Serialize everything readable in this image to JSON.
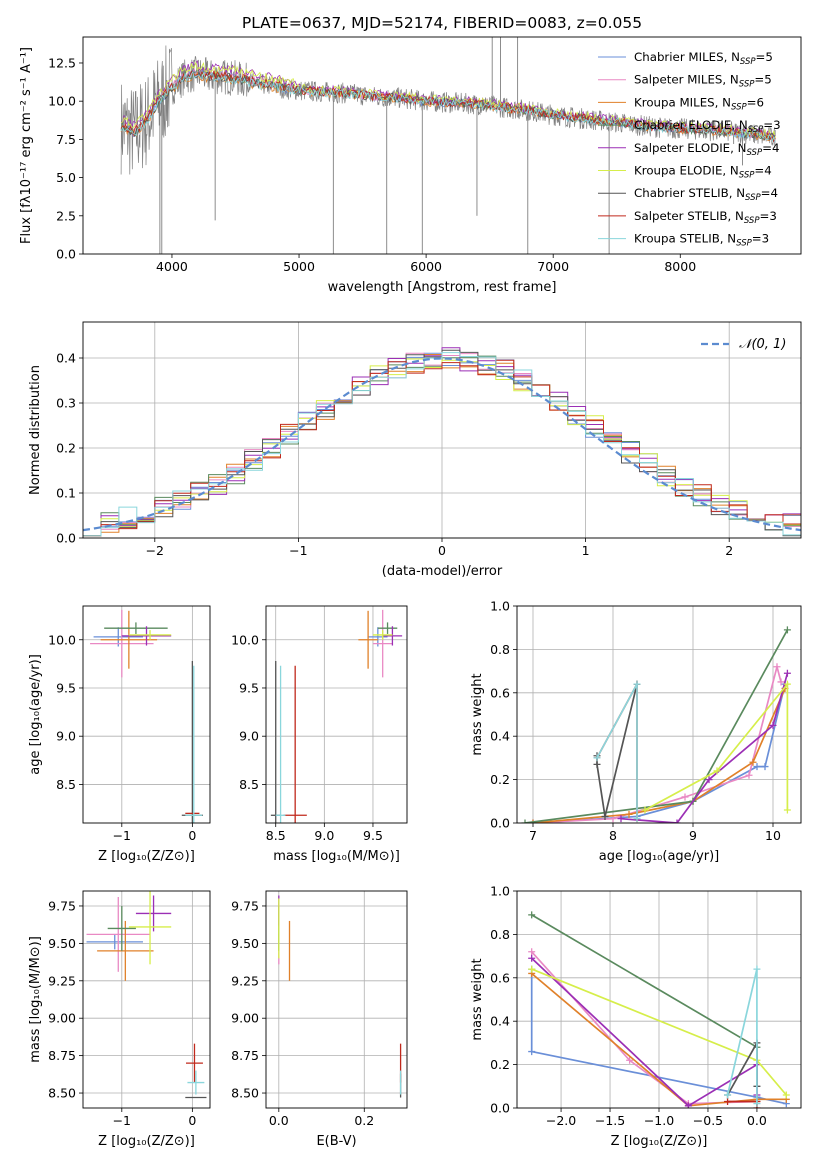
{
  "figure_title": "PLATE=0637, MJD=52174, FIBERID=0083, z=0.055",
  "series_colors": [
    "#6a8fd8",
    "#e989c4",
    "#e0812a",
    "#5a8a5e",
    "#9b2fb5",
    "#d6ee4a",
    "#555555",
    "#c0291c",
    "#8ad6dc"
  ],
  "chart_data": [
    {
      "id": "spectrum",
      "type": "line",
      "title": "PLATE=0637, MJD=52174, FIBERID=0083, z=0.055",
      "xlabel": "wavelength [Angstrom, rest frame]",
      "ylabel": "Flux [fλ10⁻¹⁷ erg cm⁻² s⁻¹ A⁻¹]",
      "xlim": [
        3300,
        8950
      ],
      "ylim": [
        0,
        14.2
      ],
      "x_ticks": [
        "4000",
        "5000",
        "6000",
        "7000",
        "8000"
      ],
      "y_ticks": [
        "0.0",
        "2.5",
        "5.0",
        "7.5",
        "10.0",
        "12.5"
      ],
      "grid": false,
      "legend_position": "top-right",
      "legend": [
        {
          "base": "Chabrier MILES, N",
          "sub": "SSP",
          "tail": "=5"
        },
        {
          "base": "Salpeter MILES, N",
          "sub": "SSP",
          "tail": "=5"
        },
        {
          "base": "Kroupa MILES, N",
          "sub": "SSP",
          "tail": "=6"
        },
        {
          "base": "Chabrier ELODIE, N",
          "sub": "SSP",
          "tail": "=3"
        },
        {
          "base": "Salpeter ELODIE, N",
          "sub": "SSP",
          "tail": "=4"
        },
        {
          "base": "Kroupa ELODIE, N",
          "sub": "SSP",
          "tail": "=4"
        },
        {
          "base": "Chabrier STELIB, N",
          "sub": "SSP",
          "tail": "=4"
        },
        {
          "base": "Salpeter STELIB, N",
          "sub": "SSP",
          "tail": "=3"
        },
        {
          "base": "Kroupa STELIB, N",
          "sub": "SSP",
          "tail": "=3"
        }
      ],
      "data_color": "#808080",
      "model_x": [
        3600,
        3700,
        3800,
        3900,
        4000,
        4100,
        4200,
        4300,
        4400,
        4500,
        4600,
        4700,
        4800,
        4900,
        5000,
        5200,
        5400,
        5600,
        5800,
        6000,
        6200,
        6400,
        6600,
        6800,
        7000,
        7200,
        7400,
        7600,
        7800,
        8000,
        8200,
        8400,
        8600,
        8750
      ],
      "model_y": [
        8.4,
        7.9,
        8.7,
        10.0,
        10.9,
        11.6,
        11.8,
        11.6,
        11.6,
        11.5,
        11.3,
        11.1,
        11.0,
        10.8,
        10.7,
        10.6,
        10.5,
        10.3,
        10.2,
        10.0,
        9.9,
        9.8,
        9.6,
        9.4,
        9.1,
        8.9,
        8.7,
        8.5,
        8.3,
        8.2,
        8.1,
        8.0,
        7.8,
        7.6
      ],
      "model_offsets": [
        0.0,
        0.15,
        -0.1,
        0.05,
        0.55,
        0.5,
        0.0,
        0.1,
        -0.05
      ],
      "dips": [
        {
          "x": 3905,
          "y": 0.0
        },
        {
          "x": 3920,
          "y": 0.0
        },
        {
          "x": 4340,
          "y": 2.2
        },
        {
          "x": 5270,
          "y": 0.0
        },
        {
          "x": 5690,
          "y": 0.0
        },
        {
          "x": 5970,
          "y": 0.0
        },
        {
          "x": 6400,
          "y": 2.5
        },
        {
          "x": 6800,
          "y": 0.0
        },
        {
          "x": 7440,
          "y": 0.0
        },
        {
          "x": 8420,
          "y": 7.2
        },
        {
          "x": 8490,
          "y": 5.8
        }
      ],
      "spikes": [
        {
          "x": 6520,
          "y": 14.2
        },
        {
          "x": 6585,
          "y": 14.2
        },
        {
          "x": 6720,
          "y": 14.2
        }
      ]
    },
    {
      "id": "residuals",
      "type": "step",
      "xlabel": "(data-model)/error",
      "ylabel": "Normed distribution",
      "xlim": [
        -2.5,
        2.5
      ],
      "ylim": [
        0,
        0.48
      ],
      "x_ticks": [
        "−2",
        "−1",
        "0",
        "1",
        "2"
      ],
      "y_ticks": [
        "0.0",
        "0.1",
        "0.2",
        "0.3",
        "0.4"
      ],
      "grid": true,
      "legend_position": "top-right",
      "gaussian_label": "𝒩(0, 1)",
      "gaussian_color": "#5b8bd0",
      "bin_edges": [
        -2.5,
        2.5
      ],
      "bin_count": 40,
      "hist_base": [
        0.03,
        0.037,
        0.045,
        0.055,
        0.068,
        0.083,
        0.1,
        0.12,
        0.145,
        0.172,
        0.2,
        0.228,
        0.258,
        0.286,
        0.312,
        0.338,
        0.36,
        0.378,
        0.39,
        0.398,
        0.4,
        0.396,
        0.386,
        0.372,
        0.352,
        0.33,
        0.304,
        0.276,
        0.248,
        0.218,
        0.19,
        0.163,
        0.138,
        0.115,
        0.094,
        0.076,
        0.061,
        0.048,
        0.038,
        0.03
      ]
    },
    {
      "id": "age-vs-metallicity",
      "type": "errorbar",
      "xlabel": "Z [log₁₀(Z/Z⊙)]",
      "ylabel": "age  [log₁₀(age/yr)]",
      "xlim": [
        -1.55,
        0.25
      ],
      "ylim": [
        8.1,
        10.35
      ],
      "x_ticks": [
        "−1",
        "0"
      ],
      "y_ticks": [
        "8.5",
        "9.0",
        "9.5",
        "10.0"
      ],
      "grid": true,
      "points": [
        {
          "s": 0,
          "x": -1.05,
          "y": 10.03,
          "xe": 0.35,
          "ye": 0.1
        },
        {
          "s": 1,
          "x": -1.0,
          "y": 9.96,
          "xe": 0.45,
          "ye": 0.35
        },
        {
          "s": 2,
          "x": -0.9,
          "y": 10.0,
          "xe": 0.4,
          "ye": 0.3
        },
        {
          "s": 3,
          "x": -0.8,
          "y": 10.12,
          "xe": 0.45,
          "ye": 0.06
        },
        {
          "s": 4,
          "x": -0.65,
          "y": 10.04,
          "xe": 0.35,
          "ye": 0.1
        },
        {
          "s": 5,
          "x": -0.6,
          "y": 10.05,
          "xe": 0.3,
          "ye": 0.05
        },
        {
          "s": 6,
          "x": 0.0,
          "y": 8.18,
          "xe": 0.15,
          "ye": 1.6
        },
        {
          "s": 7,
          "x": 0.0,
          "y": 8.2,
          "xe": 0.1,
          "ye": 0.0
        },
        {
          "s": 8,
          "x": 0.02,
          "y": 8.18,
          "xe": 0.12,
          "ye": 1.55
        }
      ]
    },
    {
      "id": "age-vs-mass",
      "type": "errorbar",
      "xlabel": "mass [log₁₀(M/M⊙)]",
      "ylabel": "",
      "xlim": [
        8.4,
        9.85
      ],
      "ylim": [
        8.1,
        10.35
      ],
      "x_ticks": [
        "8.5",
        "9.0",
        "9.5"
      ],
      "y_ticks": [
        "8.5",
        "9.0",
        "9.5",
        "10.0"
      ],
      "grid": true,
      "points": [
        {
          "s": 0,
          "x": 9.55,
          "y": 10.03,
          "xe": 0.1,
          "ye": 0.1
        },
        {
          "s": 1,
          "x": 9.6,
          "y": 9.96,
          "xe": 0.1,
          "ye": 0.35
        },
        {
          "s": 2,
          "x": 9.45,
          "y": 10.0,
          "xe": 0.1,
          "ye": 0.3
        },
        {
          "s": 3,
          "x": 9.65,
          "y": 10.12,
          "xe": 0.1,
          "ye": 0.06
        },
        {
          "s": 4,
          "x": 9.7,
          "y": 10.04,
          "xe": 0.1,
          "ye": 0.1
        },
        {
          "s": 5,
          "x": 9.6,
          "y": 10.05,
          "xe": 0.1,
          "ye": 0.05
        },
        {
          "s": 6,
          "x": 8.5,
          "y": 8.18,
          "xe": 0.05,
          "ye": 1.6
        },
        {
          "s": 7,
          "x": 8.7,
          "y": 8.18,
          "xe": 0.12,
          "ye": 1.55
        },
        {
          "s": 8,
          "x": 8.55,
          "y": 8.18,
          "xe": 0.05,
          "ye": 1.55
        }
      ]
    },
    {
      "id": "massweight-vs-age",
      "type": "line",
      "xlabel": "age  [log₁₀(age/yr)]",
      "ylabel": "mass weight",
      "xlim": [
        6.8,
        10.35
      ],
      "ylim": [
        0,
        1.0
      ],
      "x_ticks": [
        "7",
        "8",
        "9",
        "10"
      ],
      "y_ticks": [
        "0.0",
        "0.2",
        "0.4",
        "0.6",
        "0.8",
        "1.0"
      ],
      "grid": true,
      "series": [
        {
          "s": 0,
          "x": [
            7.0,
            8.3,
            9.0,
            9.8,
            9.9,
            10.15
          ],
          "y": [
            0.0,
            0.03,
            0.1,
            0.26,
            0.26,
            0.64
          ]
        },
        {
          "s": 1,
          "x": [
            7.0,
            8.0,
            8.9,
            9.7,
            10.05,
            10.1
          ],
          "y": [
            0.0,
            0.02,
            0.12,
            0.22,
            0.72,
            0.65
          ]
        },
        {
          "s": 2,
          "x": [
            7.0,
            8.2,
            9.0,
            9.75,
            10.15
          ],
          "y": [
            0.0,
            0.04,
            0.1,
            0.28,
            0.62
          ]
        },
        {
          "s": 3,
          "x": [
            6.9,
            9.0,
            10.18
          ],
          "y": [
            0.0,
            0.1,
            0.89
          ]
        },
        {
          "s": 4,
          "x": [
            8.1,
            8.8,
            9.2,
            10.0,
            10.18
          ],
          "y": [
            0.02,
            0.0,
            0.2,
            0.45,
            0.69
          ]
        },
        {
          "s": 5,
          "x": [
            8.4,
            9.3,
            10.18,
            10.18
          ],
          "y": [
            0.06,
            0.24,
            0.64,
            0.06
          ]
        },
        {
          "s": 6,
          "x": [
            7.8,
            7.8,
            7.9,
            8.3
          ],
          "y": [
            0.31,
            0.27,
            0.03,
            0.64
          ]
        },
        {
          "s": 7,
          "x": [
            7.8,
            8.3,
            8.3
          ],
          "y": [
            0.3,
            0.64,
            0.02
          ]
        },
        {
          "s": 8,
          "x": [
            7.8,
            8.3,
            8.3
          ],
          "y": [
            0.3,
            0.64,
            0.02
          ]
        }
      ]
    },
    {
      "id": "mass-vs-metallicity",
      "type": "errorbar",
      "xlabel": "Z [log₁₀(Z/Z⊙)]",
      "ylabel": "mass [log₁₀(M/M⊙)]",
      "xlim": [
        -1.55,
        0.25
      ],
      "ylim": [
        8.4,
        9.85
      ],
      "x_ticks": [
        "−1",
        "0"
      ],
      "y_ticks": [
        "8.50",
        "8.75",
        "9.00",
        "9.25",
        "9.50",
        "9.75"
      ],
      "grid": true,
      "points": [
        {
          "s": 0,
          "x": -1.1,
          "y": 9.51,
          "xe": 0.4,
          "ye": 0.05
        },
        {
          "s": 1,
          "x": -1.05,
          "y": 9.56,
          "xe": 0.45,
          "ye": 0.25
        },
        {
          "s": 2,
          "x": -0.95,
          "y": 9.45,
          "xe": 0.4,
          "ye": 0.2
        },
        {
          "s": 3,
          "x": -1.0,
          "y": 9.6,
          "xe": 0.2,
          "ye": 0.15
        },
        {
          "s": 4,
          "x": -0.55,
          "y": 9.7,
          "xe": 0.25,
          "ye": 0.12
        },
        {
          "s": 5,
          "x": -0.6,
          "y": 9.61,
          "xe": 0.3,
          "ye": 0.25
        },
        {
          "s": 6,
          "x": 0.05,
          "y": 8.47,
          "xe": 0.15,
          "ye": 0.0
        },
        {
          "s": 7,
          "x": 0.03,
          "y": 8.7,
          "xe": 0.12,
          "ye": 0.13
        },
        {
          "s": 8,
          "x": 0.05,
          "y": 8.57,
          "xe": 0.12,
          "ye": 0.08
        }
      ]
    },
    {
      "id": "mass-vs-ebv",
      "type": "errorbar",
      "xlabel": "E(B-V)",
      "ylabel": "",
      "xlim": [
        -0.03,
        0.3
      ],
      "ylim": [
        8.4,
        9.85
      ],
      "x_ticks": [
        "0.0",
        "0.2"
      ],
      "y_ticks": [
        "8.50",
        "8.75",
        "9.00",
        "9.25",
        "9.50",
        "9.75"
      ],
      "grid": true,
      "points": [
        {
          "s": 0,
          "x": 0.0,
          "y": 9.51,
          "xe": 0.0,
          "ye": 0.05
        },
        {
          "s": 1,
          "x": 0.0,
          "y": 9.56,
          "xe": 0.0,
          "ye": 0.2
        },
        {
          "s": 2,
          "x": 0.025,
          "y": 9.45,
          "xe": 0.0,
          "ye": 0.2
        },
        {
          "s": 3,
          "x": 0.0,
          "y": 9.6,
          "xe": 0.0,
          "ye": 0.15
        },
        {
          "s": 4,
          "x": 0.0,
          "y": 9.72,
          "xe": 0.0,
          "ye": 0.1
        },
        {
          "s": 5,
          "x": 0.0,
          "y": 9.6,
          "xe": 0.0,
          "ye": 0.2
        },
        {
          "s": 6,
          "x": 0.285,
          "y": 8.55,
          "xe": 0.0,
          "ye": 0.08
        },
        {
          "s": 7,
          "x": 0.285,
          "y": 8.7,
          "xe": 0.0,
          "ye": 0.13
        },
        {
          "s": 8,
          "x": 0.285,
          "y": 8.57,
          "xe": 0.0,
          "ye": 0.08
        }
      ]
    },
    {
      "id": "massweight-vs-metallicity",
      "type": "line",
      "xlabel": "Z [log₁₀(Z/Z⊙)]",
      "ylabel": "mass weight",
      "xlim": [
        -2.45,
        0.45
      ],
      "ylim": [
        0,
        1.0
      ],
      "x_ticks": [
        "−2.0",
        "−1.5",
        "−1.0",
        "−0.5",
        "0.0"
      ],
      "y_ticks": [
        "0.0",
        "0.2",
        "0.4",
        "0.6",
        "0.8",
        "1.0"
      ],
      "grid": true,
      "series": [
        {
          "s": 0,
          "x": [
            -2.3,
            -2.3,
            0.0,
            0.3
          ],
          "y": [
            0.64,
            0.26,
            0.05,
            0.02
          ]
        },
        {
          "s": 1,
          "x": [
            -2.3,
            -1.3,
            -0.7,
            0.0
          ],
          "y": [
            0.72,
            0.22,
            0.02,
            0.03
          ]
        },
        {
          "s": 2,
          "x": [
            -2.3,
            -0.7,
            0.0,
            0.3
          ],
          "y": [
            0.62,
            0.01,
            0.04,
            0.04
          ]
        },
        {
          "s": 3,
          "x": [
            -2.3,
            0.0,
            0.0
          ],
          "y": [
            0.89,
            0.28,
            0.03
          ]
        },
        {
          "s": 4,
          "x": [
            -2.3,
            -0.7,
            0.0,
            0.0
          ],
          "y": [
            0.69,
            0.01,
            0.2,
            0.06
          ]
        },
        {
          "s": 5,
          "x": [
            -2.3,
            0.0,
            0.3
          ],
          "y": [
            0.64,
            0.22,
            0.06
          ]
        },
        {
          "s": 6,
          "x": [
            -0.3,
            0.0,
            0.0
          ],
          "y": [
            0.06,
            0.3,
            0.1
          ]
        },
        {
          "s": 7,
          "x": [
            -0.3,
            0.0,
            0.0
          ],
          "y": [
            0.03,
            0.03,
            0.0
          ]
        },
        {
          "s": 8,
          "x": [
            -0.3,
            0.0,
            0.0
          ],
          "y": [
            0.06,
            0.64,
            0.02
          ]
        }
      ]
    }
  ]
}
